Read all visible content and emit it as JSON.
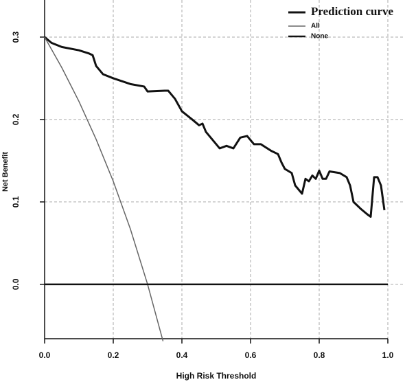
{
  "chart_data": {
    "type": "line",
    "x_label": "High Risk Threshold",
    "y_label": "Net Benefit",
    "xlim": [
      0,
      1
    ],
    "ylim": [
      -0.066,
      0.345
    ],
    "xticks": [
      {
        "value": 0,
        "label": "0.0"
      },
      0.2,
      0.4,
      0.6,
      0.8,
      {
        "value": 1,
        "label": "1.0"
      }
    ],
    "yticks": [
      {
        "value": 0,
        "label": "0.0"
      },
      0.1,
      0.2,
      0.3
    ],
    "grid": true,
    "legend": "top-right",
    "series": [
      {
        "name": "Prediction curve",
        "color": "#111111",
        "x": [
          0,
          0.02,
          0.05,
          0.1,
          0.13,
          0.14,
          0.15,
          0.17,
          0.2,
          0.25,
          0.29,
          0.3,
          0.35,
          0.36,
          0.38,
          0.4,
          0.43,
          0.45,
          0.46,
          0.47,
          0.48,
          0.5,
          0.51,
          0.53,
          0.55,
          0.57,
          0.59,
          0.6,
          0.61,
          0.63,
          0.66,
          0.68,
          0.69,
          0.7,
          0.72,
          0.73,
          0.75,
          0.76,
          0.77,
          0.78,
          0.79,
          0.8,
          0.81,
          0.82,
          0.83,
          0.86,
          0.88,
          0.89,
          0.9,
          0.92,
          0.94,
          0.95,
          0.96,
          0.97,
          0.98,
          0.99
        ],
        "values": [
          0.3,
          0.293,
          0.288,
          0.284,
          0.28,
          0.278,
          0.265,
          0.255,
          0.25,
          0.243,
          0.24,
          0.234,
          0.235,
          0.235,
          0.225,
          0.21,
          0.2,
          0.193,
          0.195,
          0.185,
          0.18,
          0.17,
          0.165,
          0.168,
          0.165,
          0.178,
          0.18,
          0.175,
          0.17,
          0.17,
          0.162,
          0.158,
          0.148,
          0.14,
          0.135,
          0.12,
          0.11,
          0.128,
          0.125,
          0.132,
          0.128,
          0.138,
          0.128,
          0.128,
          0.137,
          0.135,
          0.13,
          0.12,
          0.1,
          0.092,
          0.085,
          0.082,
          0.13,
          0.13,
          0.12,
          0.09
        ]
      },
      {
        "name": "All",
        "color": "#666666",
        "x": [
          0,
          0.05,
          0.1,
          0.15,
          0.2,
          0.25,
          0.3,
          0.345
        ],
        "values": [
          0.3,
          0.263,
          0.222,
          0.176,
          0.125,
          0.067,
          0,
          -0.069
        ]
      },
      {
        "name": "None",
        "color": "#111111",
        "x": [
          0,
          1
        ],
        "values": [
          0,
          0
        ]
      }
    ]
  }
}
